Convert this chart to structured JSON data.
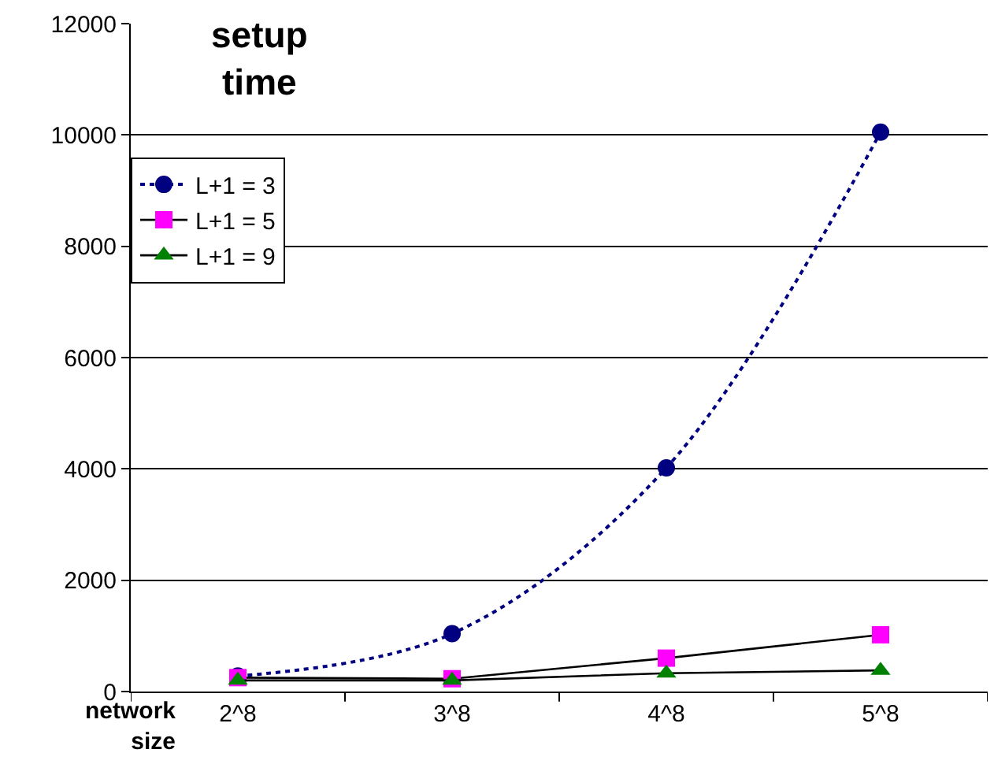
{
  "chart_data": {
    "type": "line",
    "title": "setup time",
    "xlabel": "network size",
    "categories": [
      "2^8",
      "3^8",
      "4^8",
      "5^8"
    ],
    "series": [
      {
        "name": "L+1 = 3",
        "color": "#000080",
        "marker": "circle",
        "line_style": "dotted",
        "values": [
          280,
          1040,
          4020,
          10050
        ]
      },
      {
        "name": "L+1 = 5",
        "color": "#ff00ff",
        "marker": "square",
        "line_style": "solid",
        "values": [
          250,
          230,
          600,
          1020
        ]
      },
      {
        "name": "L+1 = 9",
        "color": "#008000",
        "marker": "triangle",
        "line_style": "solid",
        "values": [
          200,
          200,
          330,
          380
        ]
      }
    ],
    "ylim": [
      0,
      12000
    ],
    "yticks": [
      0,
      2000,
      4000,
      6000,
      8000,
      10000,
      12000
    ],
    "grid": "y",
    "legend": "top left"
  }
}
